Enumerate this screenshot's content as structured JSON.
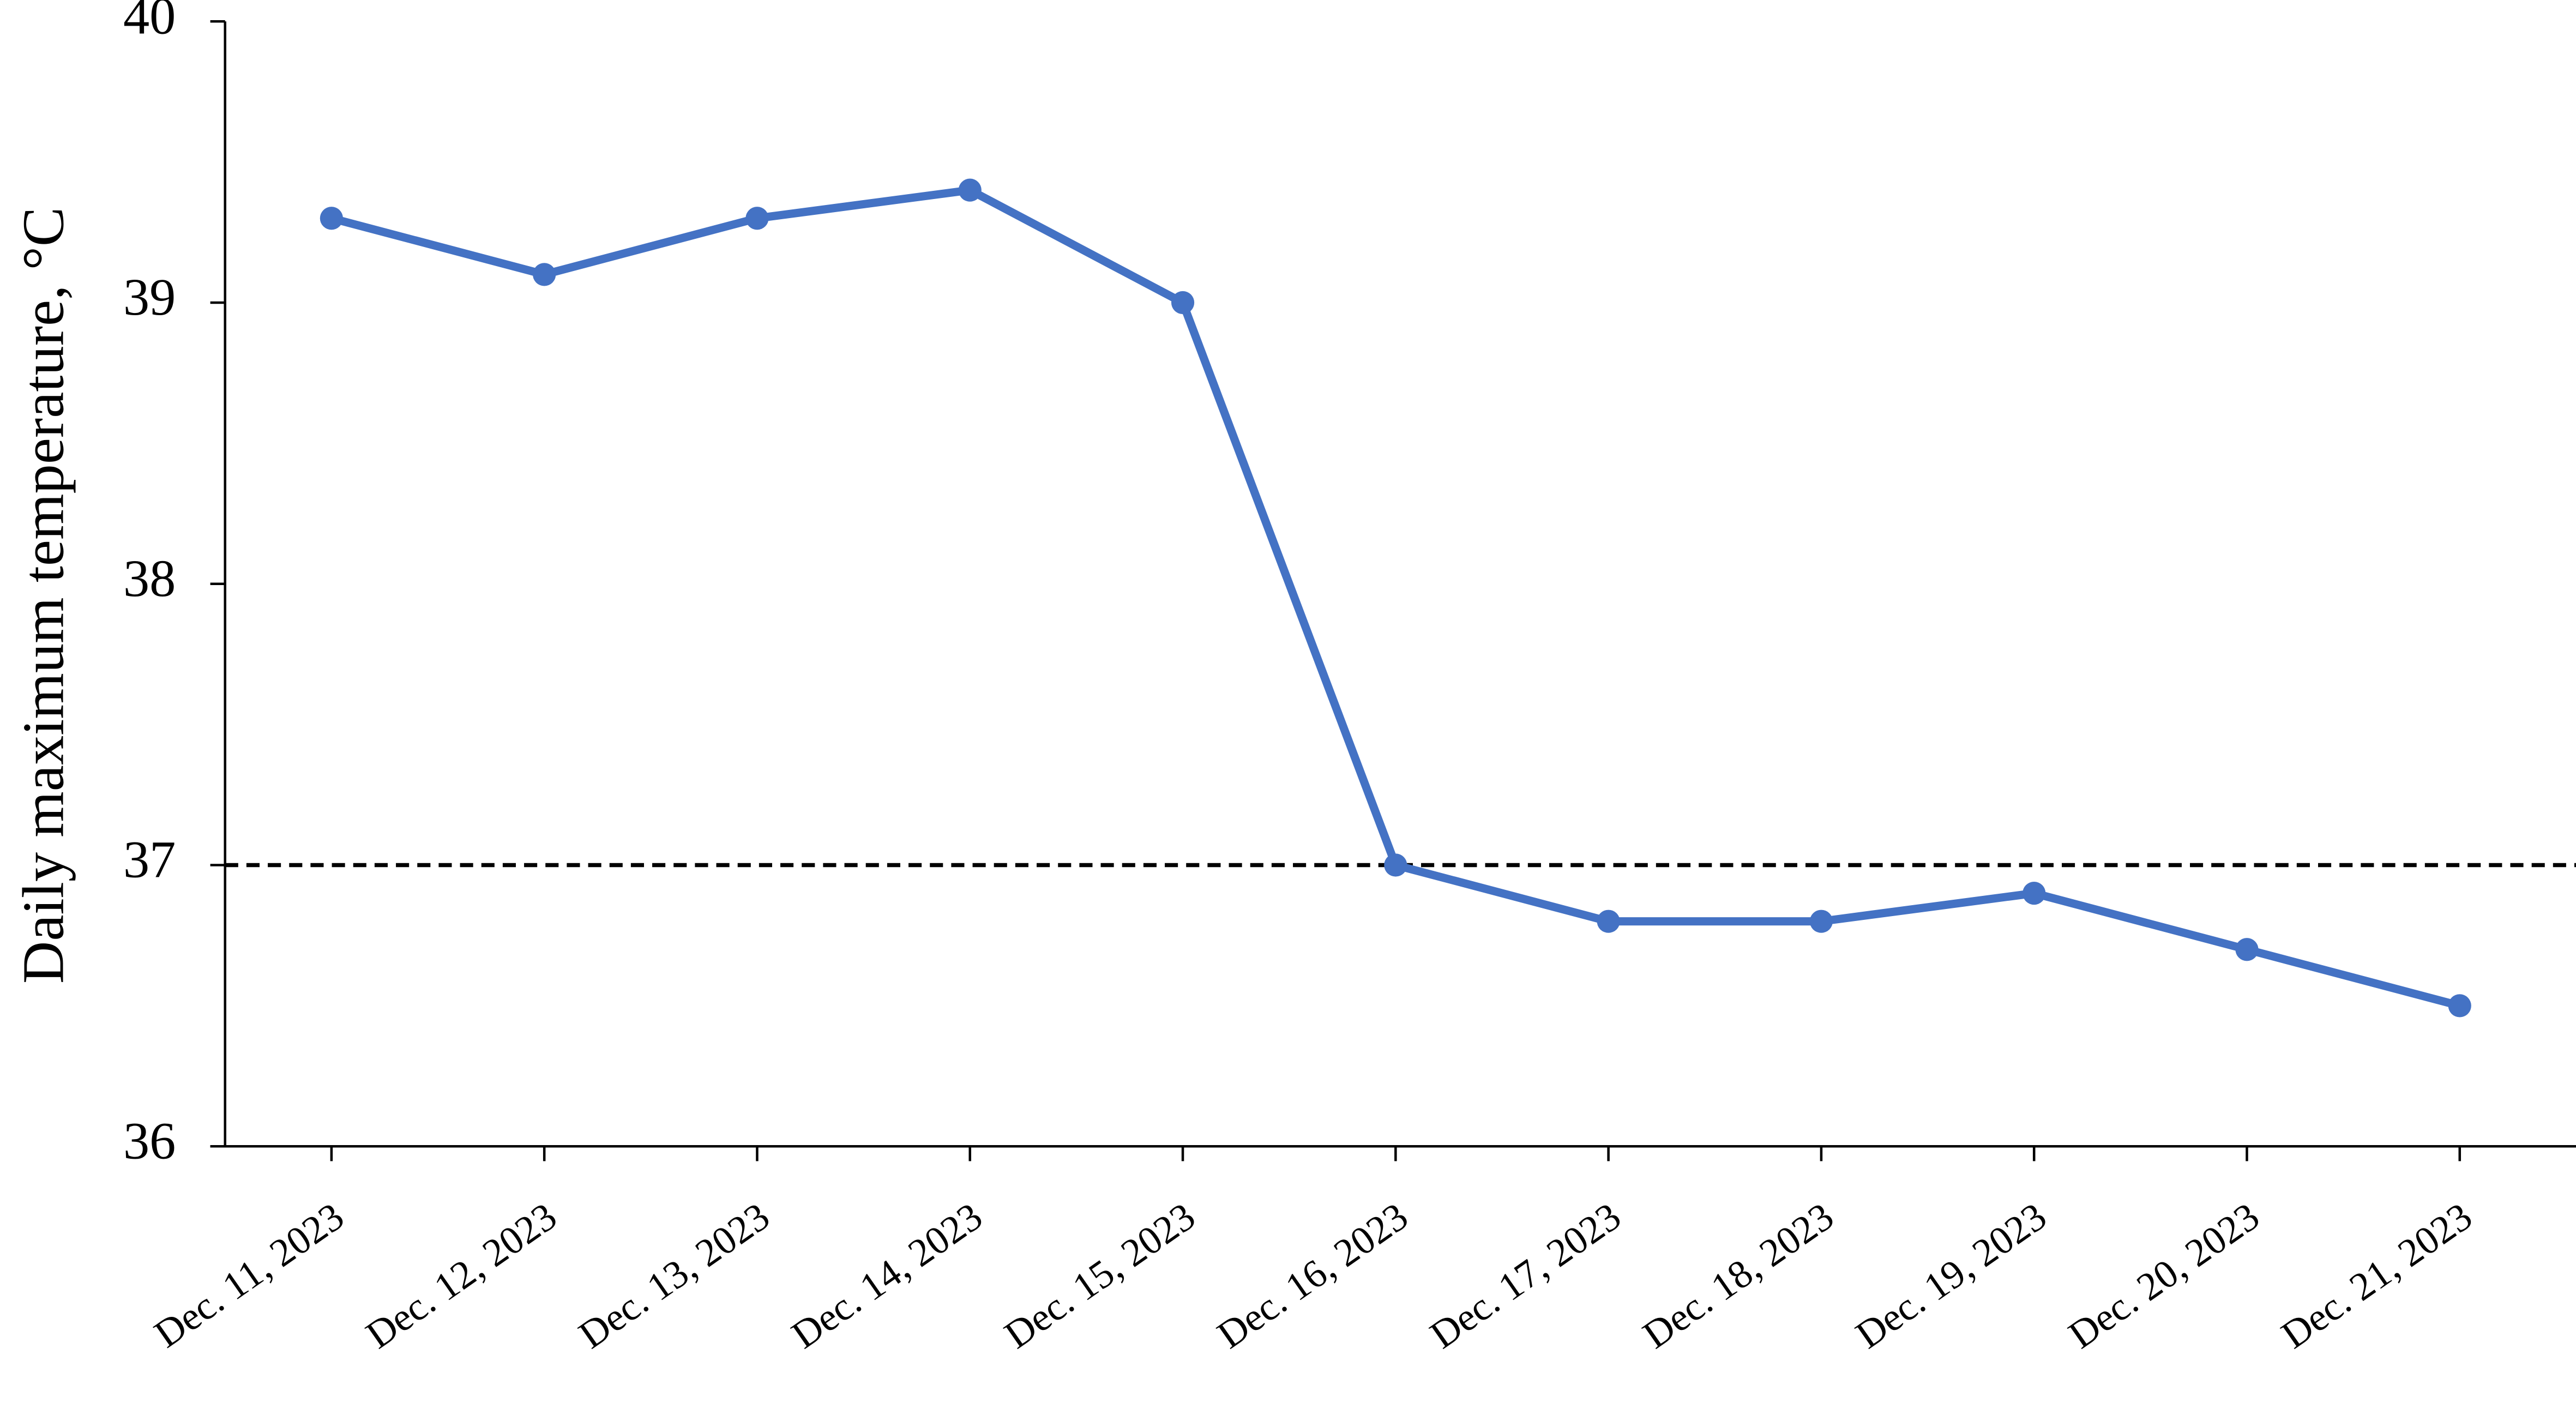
{
  "chart_data": {
    "type": "line",
    "y_label": "Daily maximum temperature, °C",
    "categories": [
      "Dec. 11, 2023",
      "Dec. 12, 2023",
      "Dec. 13, 2023",
      "Dec. 14, 2023",
      "Dec. 15, 2023",
      "Dec. 16, 2023",
      "Dec. 17, 2023",
      "Dec. 18, 2023",
      "Dec. 19, 2023",
      "Dec. 20, 2023",
      "Dec. 21, 2023"
    ],
    "series": [
      {
        "color": "#4472c4",
        "values": [
          39.3,
          39.1,
          39.3,
          39.4,
          39.0,
          37.0,
          36.8,
          36.8,
          36.9,
          36.7,
          36.5
        ]
      }
    ],
    "reference_line": {
      "value": 37,
      "color": "#000000"
    },
    "ylim": [
      36,
      40
    ],
    "yticks": [
      36,
      37,
      38,
      39,
      40
    ],
    "grid": false
  }
}
